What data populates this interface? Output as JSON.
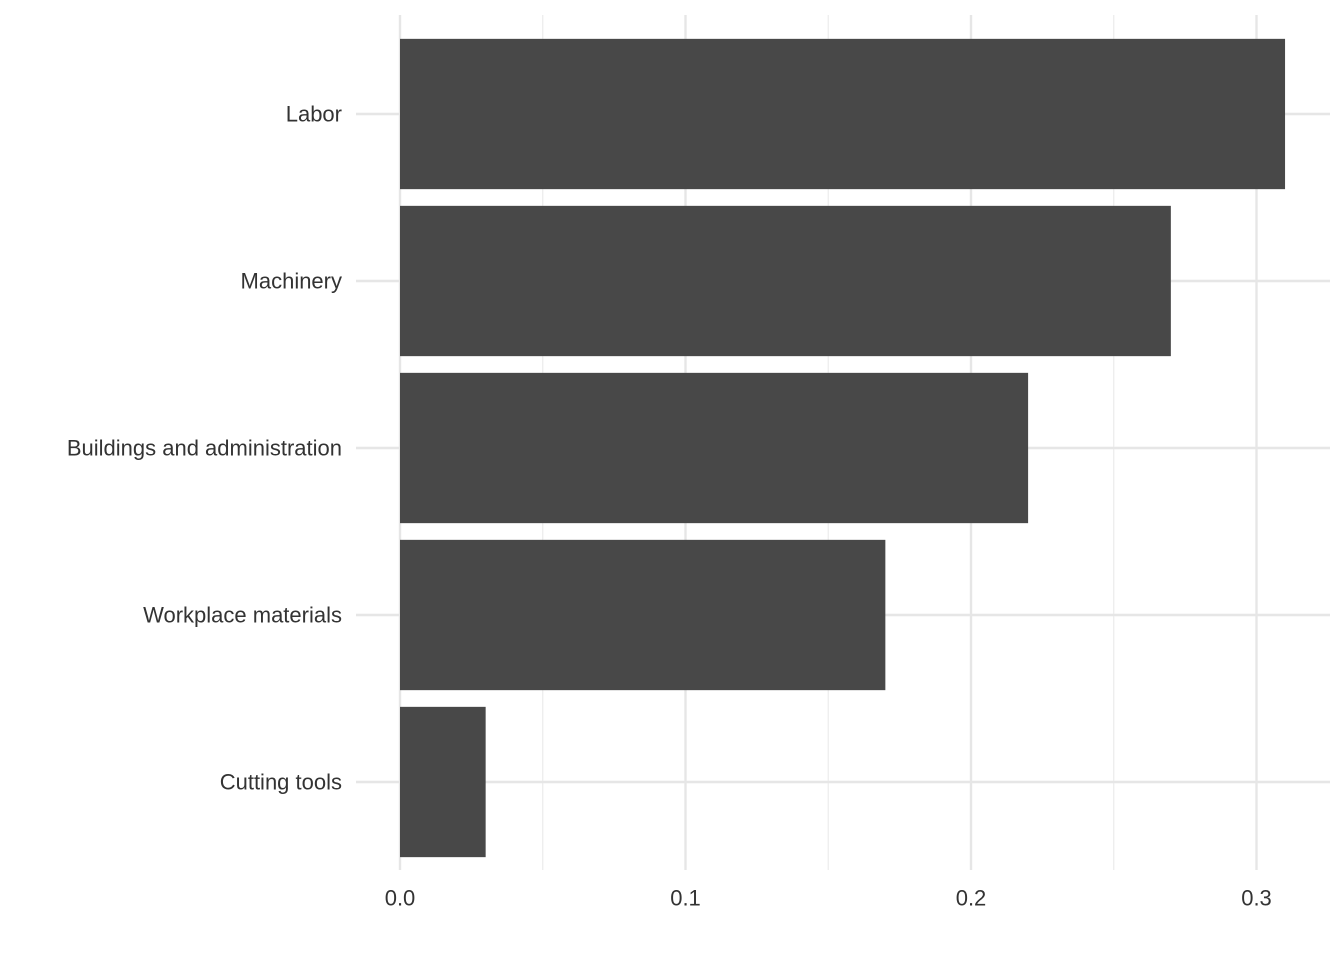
{
  "chart_data": {
    "type": "bar",
    "orientation": "horizontal",
    "title": "",
    "xlabel": "",
    "ylabel": "",
    "categories": [
      "Labor",
      "Machinery",
      "Buildings and administration",
      "Workplace materials",
      "Cutting tools"
    ],
    "values": [
      0.31,
      0.27,
      0.22,
      0.17,
      0.03
    ],
    "xlim": [
      0,
      0.325
    ],
    "x_ticks": [
      0.0,
      0.1,
      0.2,
      0.3
    ],
    "x_tick_labels": [
      "0.0",
      "0.1",
      "0.2",
      "0.3"
    ],
    "grid": true,
    "legend": "none",
    "bar_color": "#484848"
  }
}
